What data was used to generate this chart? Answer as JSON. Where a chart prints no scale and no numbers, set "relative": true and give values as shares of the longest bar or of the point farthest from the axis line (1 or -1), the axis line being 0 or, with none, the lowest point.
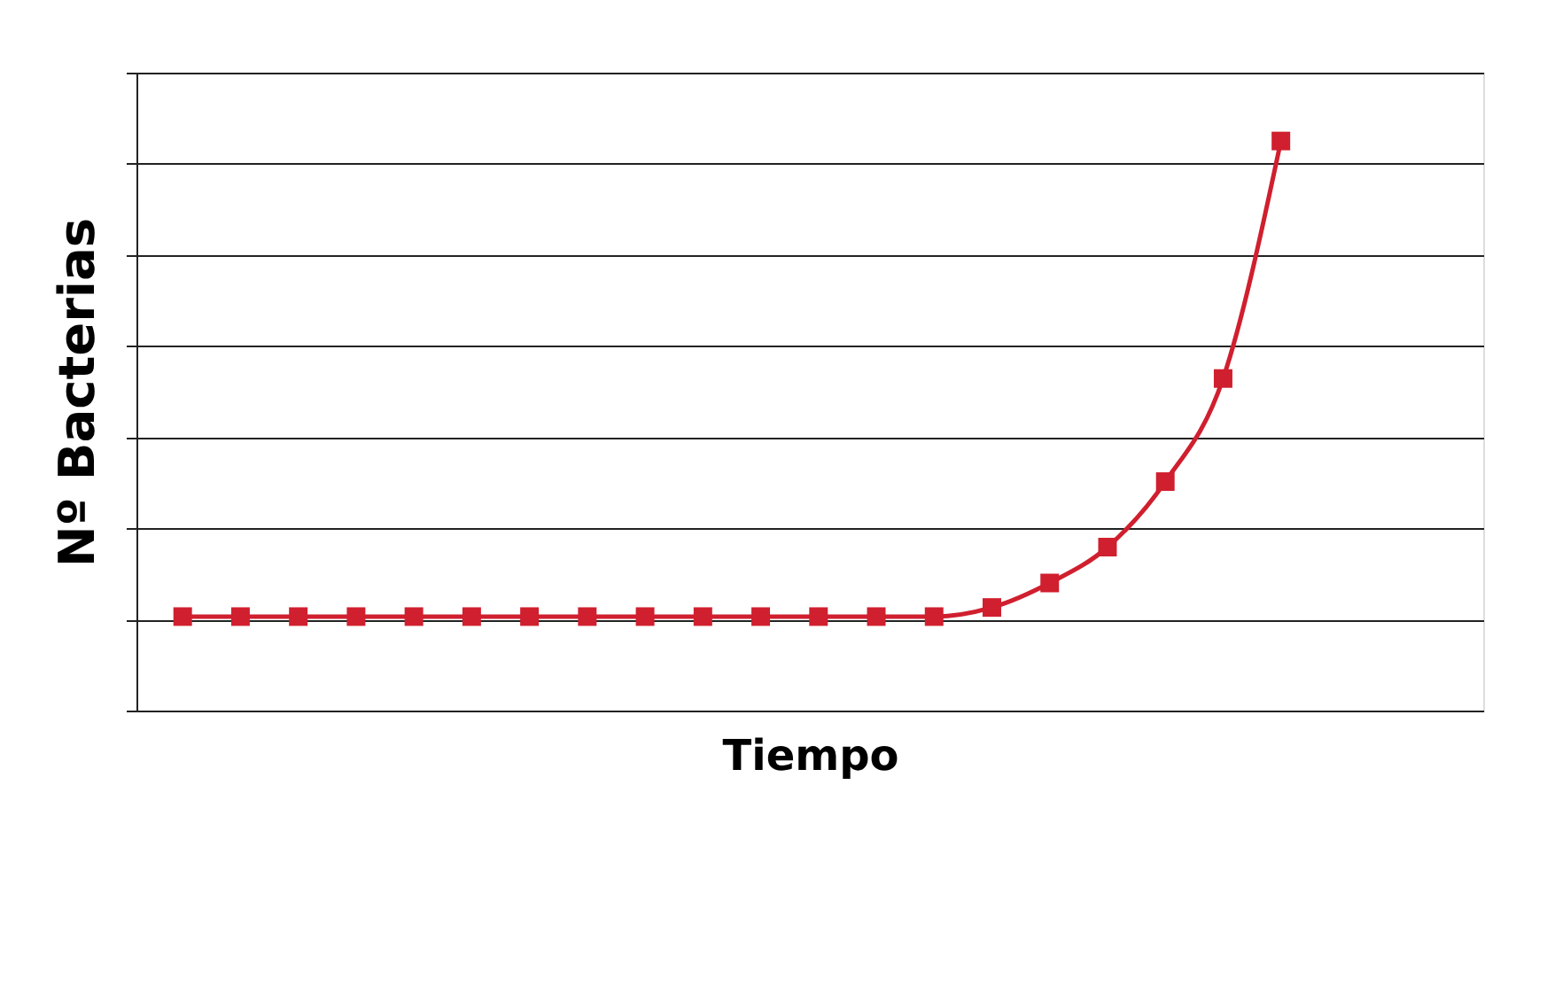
{
  "chart_data": {
    "type": "line",
    "xlabel": "Tiempo",
    "ylabel": "Nº Bacterias",
    "relative": true,
    "grid": "y",
    "marker": "square",
    "line_style": "solid",
    "tick_labels": false,
    "categories": [
      null,
      null,
      null,
      null,
      null,
      null,
      null,
      null,
      null,
      null,
      null,
      null,
      null,
      null,
      null,
      null,
      null,
      null,
      null,
      null
    ],
    "series": [
      {
        "color": "#d01f2e",
        "values": [
          0.165,
          0.165,
          0.165,
          0.165,
          0.165,
          0.165,
          0.165,
          0.165,
          0.165,
          0.165,
          0.165,
          0.165,
          0.165,
          0.165,
          0.181,
          0.224,
          0.287,
          0.402,
          0.583,
          1
        ]
      }
    ]
  }
}
